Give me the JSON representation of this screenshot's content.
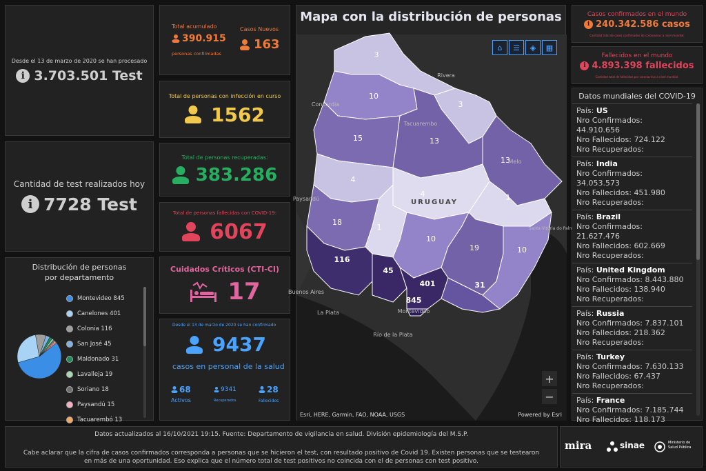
{
  "tests_total": {
    "caption": "Desde el 13 de marzo de 2020 se han procesado",
    "value": "3.703.501 Test"
  },
  "tests_today": {
    "caption": "Cantidad de test realizados hoy",
    "value": "7728 Test"
  },
  "accumulated": {
    "label": "Total acumulado",
    "value": "390.915",
    "sub": "personas confirmadas",
    "new_label": "Casos Nuevos",
    "new_value": "163"
  },
  "active": {
    "label": "Total de personas con infección en curso",
    "value": "1562"
  },
  "recovered": {
    "label": "Total de personas recuperadas:",
    "value": "383.286"
  },
  "deceased": {
    "label": "Total de personas fallecidas con COVID-19:",
    "value": "6067"
  },
  "cti": {
    "label": "Cuidados Críticos (CTI-CI)",
    "value": "17"
  },
  "staff": {
    "caption": "Desde el 13 de marzo de 2020 se han confirmado",
    "value": "9437",
    "label": "casos en personal de la salud",
    "active_value": "68",
    "active_label": "Activos",
    "recovered_value": "9341",
    "recovered_label": "Recuperados",
    "deceased_value": "28",
    "deceased_label": "Fallecidos"
  },
  "distribution": {
    "title": "Distribución de personas por departamento",
    "items": [
      {
        "name": "Montevideo",
        "value": "845",
        "color": "#3a8ee6"
      },
      {
        "name": "Canelones",
        "value": "401",
        "color": "#a9d3f5"
      },
      {
        "name": "Colonia",
        "value": "116",
        "color": "#9e9e9e"
      },
      {
        "name": "San José",
        "value": "45",
        "color": "#7fb2e5"
      },
      {
        "name": "Maldonado",
        "value": "31",
        "color": "#1e8a5a"
      },
      {
        "name": "Lavalleja",
        "value": "19",
        "color": "#a8d8b0"
      },
      {
        "name": "Soriano",
        "value": "18",
        "color": "#707070"
      },
      {
        "name": "Paysandú",
        "value": "15",
        "color": "#f4b0c0"
      },
      {
        "name": "Tacuarembó",
        "value": "13",
        "color": "#f4a860"
      }
    ]
  },
  "map": {
    "title": "Mapa con la distribución de personas",
    "country_label": "URUGUAY",
    "attribution": "Esri, HERE, Garmin, FAO, NOAA, USGS",
    "powered": "Powered by Esri",
    "zoom_in": "+",
    "zoom_out": "−",
    "places": [
      "Concordia",
      "Tacuarembo",
      "Rivera",
      "Melo",
      "Paysandú",
      "Santa Vitória do Palmar",
      "Buenos Aires",
      "La Plata",
      "Montevideo",
      "Río de la Plata"
    ],
    "department_values": [
      "3",
      "10",
      "3",
      "15",
      "13",
      "13",
      "4",
      "4",
      "1",
      "18",
      "1",
      "10",
      "19",
      "10",
      "116",
      "45",
      "401",
      "845",
      "31"
    ]
  },
  "world_confirmed": {
    "label": "Casos confirmados en el mundo",
    "value": "240.342.586 casos",
    "note": "Cantidad total de casos confirmados de coronavirus a nivel mundial."
  },
  "world_deaths": {
    "label": "Fallecidos en el mundo",
    "value": "4.893.398 fallecidos",
    "note": "Cantidad total de fallecidos por coronavirus a nivel mundial."
  },
  "world_data": {
    "title": "Datos mundiales del COVID-19",
    "country_prefix": "País: ",
    "confirmed_prefix": "Nro Confirmados: ",
    "deaths_prefix": "Nro Fallecidos: ",
    "recovered_prefix": "Nro Recuperados:",
    "countries": [
      {
        "name": "US",
        "confirmed": "44.910.656",
        "deaths": "724.122"
      },
      {
        "name": "India",
        "confirmed": "34.053.573",
        "deaths": "451.980"
      },
      {
        "name": "Brazil",
        "confirmed": "21.627.476",
        "deaths": "602.669"
      },
      {
        "name": "United Kingdom",
        "confirmed": "8.443.880",
        "deaths": "138.940"
      },
      {
        "name": "Russia",
        "confirmed": "7.837.101",
        "deaths": "218.362"
      },
      {
        "name": "Turkey",
        "confirmed": "7.630.133",
        "deaths": "67.437"
      },
      {
        "name": "France",
        "confirmed": "7.185.744",
        "deaths": "118.173"
      }
    ]
  },
  "footer": {
    "updated": "Datos actualizados al 16/10/2021 19:15. Fuente: Departamento de vigilancia en salud. División epidemiología del M.S.P.",
    "note": "Cabe aclarar que la cifra de casos confirmados corresponda a personas que se hicieron el test, con resultado positivo de Covid 19. Existen personas que se testearon en más de una oportunidad. Eso explica que el número total de test positivos no coincida con el de personas con test positivo.",
    "logo1": "mira",
    "logo2": "sinae",
    "logo3": "Ministerio de Salud Pública"
  }
}
